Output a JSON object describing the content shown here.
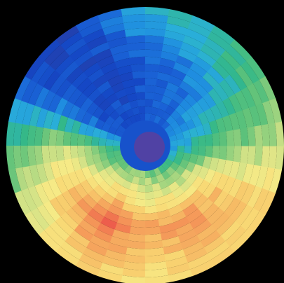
{
  "image": {
    "subject": "polar color map",
    "colormap": [
      "#2c3d9e",
      "#1546c4",
      "#1a63d6",
      "#1f8ee0",
      "#2ab0d8",
      "#33b889",
      "#5fc27a",
      "#9fd47f",
      "#d6e387",
      "#f6ea86",
      "#f8d773",
      "#f6b663",
      "#f49157",
      "#ef6b4e",
      "#e84148"
    ],
    "background": "#000000"
  },
  "chart_data": {
    "type": "heatmap",
    "projection": "polar",
    "rings": 16,
    "sectors": 36,
    "value_range": [
      0,
      1
    ],
    "center_value": 0.05,
    "radial_profiles": {
      "description_free": true,
      "levels": [
        {
          "angle_deg": 0,
          "inner": 0.25,
          "mid": 0.45,
          "outer": 0.55
        },
        {
          "angle_deg": 30,
          "inner": 0.35,
          "mid": 0.75,
          "outer": 0.75
        },
        {
          "angle_deg": 60,
          "inner": 0.4,
          "mid": 0.85,
          "outer": 0.7
        },
        {
          "angle_deg": 90,
          "inner": 0.45,
          "mid": 0.82,
          "outer": 0.65
        },
        {
          "angle_deg": 120,
          "inner": 0.45,
          "mid": 0.95,
          "outer": 0.7
        },
        {
          "angle_deg": 150,
          "inner": 0.4,
          "mid": 0.78,
          "outer": 0.55
        },
        {
          "angle_deg": 180,
          "inner": 0.3,
          "mid": 0.55,
          "outer": 0.35
        },
        {
          "angle_deg": 210,
          "inner": 0.1,
          "mid": 0.12,
          "outer": 0.1
        },
        {
          "angle_deg": 240,
          "inner": 0.08,
          "mid": 0.08,
          "outer": 0.05
        },
        {
          "angle_deg": 270,
          "inner": 0.1,
          "mid": 0.12,
          "outer": 0.3
        },
        {
          "angle_deg": 300,
          "inner": 0.12,
          "mid": 0.18,
          "outer": 0.35
        },
        {
          "angle_deg": 330,
          "inner": 0.18,
          "mid": 0.3,
          "outer": 0.45
        }
      ]
    }
  }
}
